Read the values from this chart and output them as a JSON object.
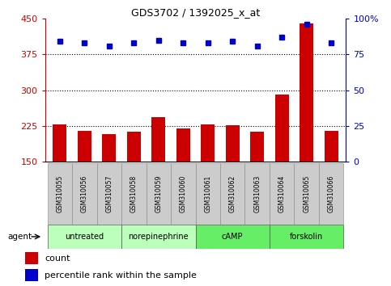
{
  "title": "GDS3702 / 1392025_x_at",
  "samples": [
    "GSM310055",
    "GSM310056",
    "GSM310057",
    "GSM310058",
    "GSM310059",
    "GSM310060",
    "GSM310061",
    "GSM310062",
    "GSM310063",
    "GSM310064",
    "GSM310065",
    "GSM310066"
  ],
  "counts": [
    228,
    215,
    207,
    213,
    243,
    220,
    228,
    226,
    213,
    291,
    440,
    215
  ],
  "percentiles": [
    84,
    83,
    81,
    83,
    85,
    83,
    83,
    84,
    81,
    87,
    96,
    83
  ],
  "bar_color": "#cc0000",
  "dot_color": "#0000cc",
  "ylim_left": [
    150,
    450
  ],
  "ylim_right": [
    0,
    100
  ],
  "yticks_left": [
    150,
    225,
    300,
    375,
    450
  ],
  "yticks_right": [
    0,
    25,
    50,
    75,
    100
  ],
  "groups": [
    {
      "label": "untreated",
      "start": 0,
      "end": 3,
      "color": "#bbffbb"
    },
    {
      "label": "norepinephrine",
      "start": 3,
      "end": 6,
      "color": "#bbffbb"
    },
    {
      "label": "cAMP",
      "start": 6,
      "end": 9,
      "color": "#66ee66"
    },
    {
      "label": "forskolin",
      "start": 9,
      "end": 12,
      "color": "#66ee66"
    }
  ],
  "agent_label": "agent",
  "legend_count_label": "count",
  "legend_pct_label": "percentile rank within the sample",
  "bg_color": "#ffffff",
  "bar_width": 0.55,
  "left_color": "#cc0000",
  "right_color": "#0000cc"
}
